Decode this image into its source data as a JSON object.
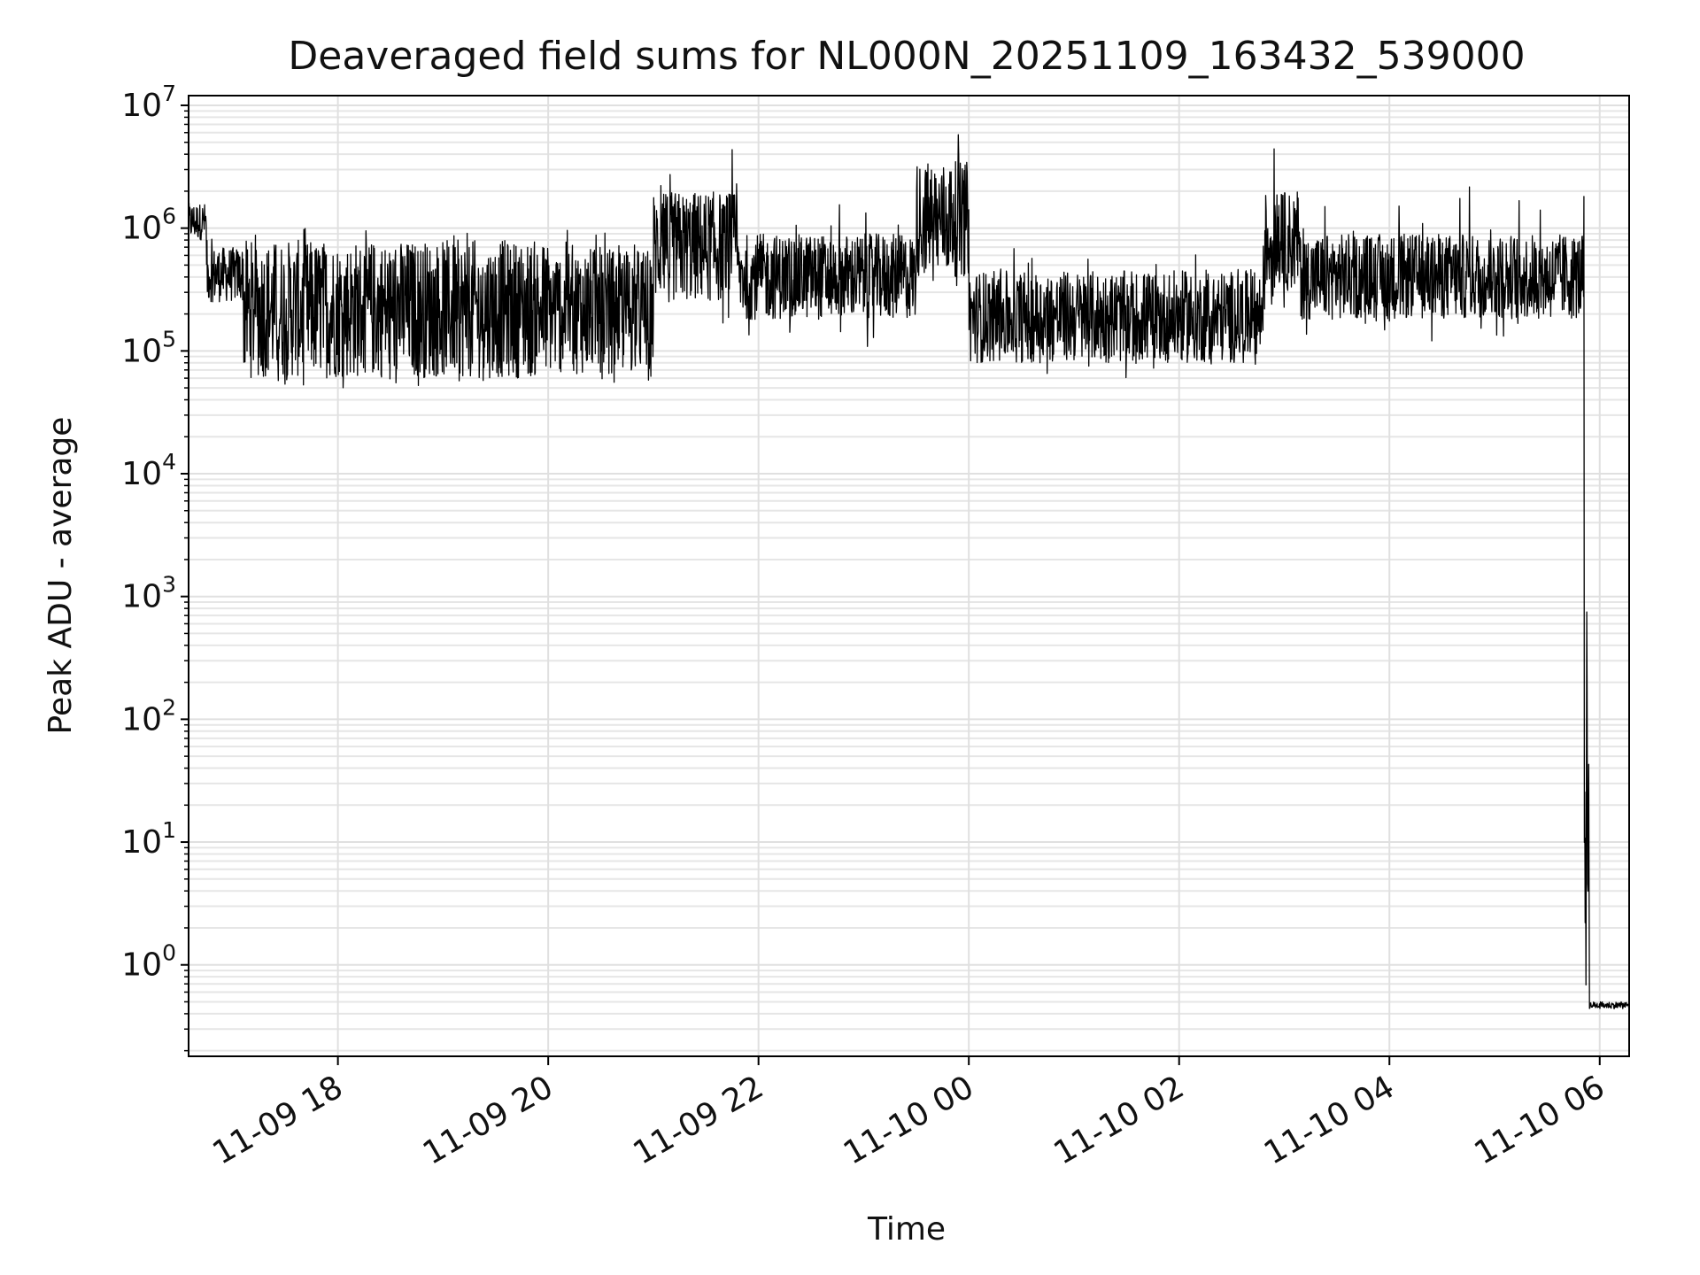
{
  "chart_data": {
    "type": "line",
    "title": "Deaveraged field sums for NL000N_20251109_163432_539000",
    "xlabel": "Time",
    "ylabel": "Peak ADU - average",
    "yscale": "log",
    "grid": true,
    "xlim_hours": [
      16.58,
      30.28
    ],
    "ylim": [
      0.18,
      12000000
    ],
    "x_ticks": [
      {
        "label": "11-09 18",
        "hour": 18
      },
      {
        "label": "11-09 20",
        "hour": 20
      },
      {
        "label": "11-09 22",
        "hour": 22
      },
      {
        "label": "11-10 00",
        "hour": 24
      },
      {
        "label": "11-10 02",
        "hour": 26
      },
      {
        "label": "11-10 04",
        "hour": 28
      },
      {
        "label": "11-10 06",
        "hour": 30
      }
    ],
    "y_ticks": [
      {
        "base": "10",
        "exp": "0",
        "value": 1
      },
      {
        "base": "10",
        "exp": "1",
        "value": 10
      },
      {
        "base": "10",
        "exp": "2",
        "value": 100
      },
      {
        "base": "10",
        "exp": "3",
        "value": 1000
      },
      {
        "base": "10",
        "exp": "4",
        "value": 10000
      },
      {
        "base": "10",
        "exp": "5",
        "value": 100000
      },
      {
        "base": "10",
        "exp": "6",
        "value": 1000000
      },
      {
        "base": "10",
        "exp": "7",
        "value": 10000000
      }
    ],
    "series": [
      {
        "name": "Peak ADU - average",
        "color": "#000000",
        "segments": [
          {
            "start_hour": 16.58,
            "end_hour": 16.75,
            "low": 800000,
            "high": 1600000,
            "spike_max": 1600000,
            "dip_min": 700000
          },
          {
            "start_hour": 16.75,
            "end_hour": 17.1,
            "low": 250000,
            "high": 700000,
            "spike_max": 900000,
            "dip_min": 180000
          },
          {
            "start_hour": 17.1,
            "end_hour": 20.0,
            "low": 60000,
            "high": 800000,
            "spike_max": 1000000,
            "dip_min": 50000
          },
          {
            "start_hour": 20.0,
            "end_hour": 21.0,
            "low": 65000,
            "high": 700000,
            "spike_max": 1000000,
            "dip_min": 55000
          },
          {
            "start_hour": 21.0,
            "end_hour": 21.8,
            "low": 250000,
            "high": 2000000,
            "spike_max": 5000000,
            "dip_min": 150000
          },
          {
            "start_hour": 21.8,
            "end_hour": 23.5,
            "low": 180000,
            "high": 900000,
            "spike_max": 2000000,
            "dip_min": 90000
          },
          {
            "start_hour": 23.5,
            "end_hour": 24.0,
            "low": 400000,
            "high": 3500000,
            "spike_max": 6000000,
            "dip_min": 110000
          },
          {
            "start_hour": 24.0,
            "end_hour": 26.8,
            "low": 80000,
            "high": 450000,
            "spike_max": 700000,
            "dip_min": 55000
          },
          {
            "start_hour": 26.8,
            "end_hour": 27.15,
            "low": 300000,
            "high": 2000000,
            "spike_max": 4500000,
            "dip_min": 200000
          },
          {
            "start_hour": 27.15,
            "end_hour": 29.85,
            "low": 180000,
            "high": 900000,
            "spike_max": 2200000,
            "dip_min": 120000
          },
          {
            "start_hour": 29.85,
            "end_hour": 29.9,
            "low": 0.45,
            "high": 1000,
            "spike_max": 1000000,
            "dip_min": 0.45
          },
          {
            "start_hour": 29.9,
            "end_hour": 30.28,
            "low": 0.44,
            "high": 0.5,
            "spike_max": 0.5,
            "dip_min": 0.44
          }
        ]
      }
    ]
  }
}
